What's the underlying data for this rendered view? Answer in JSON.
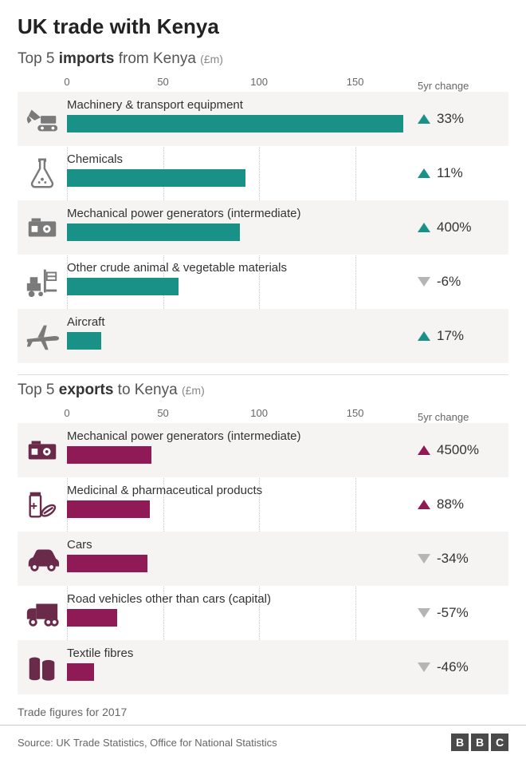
{
  "title": "UK trade with Kenya",
  "axis": {
    "min": 0,
    "max": 180,
    "ticks": [
      0,
      50,
      100,
      150
    ]
  },
  "change_header": "5yr change",
  "colors": {
    "imports_bar": "#1a9187",
    "imports_up": "#1a9187",
    "exports_bar": "#8f1a55",
    "exports_up": "#8f1a55",
    "down": "#b5b5b5",
    "stripe": "#f5f4f2",
    "grid": "#c9c9c9",
    "icon_import": "#7a7a7a",
    "icon_export": "#6a2a4a"
  },
  "sections": [
    {
      "key": "imports",
      "heading_pre": "Top 5 ",
      "heading_bold": "imports",
      "heading_post": " from Kenya",
      "unit": "(£m)",
      "bar_color": "#1a9187",
      "up_color": "#1a9187",
      "icon_color": "#7a7a7a",
      "items": [
        {
          "label": "Machinery & transport equipment",
          "value": 175,
          "change": "33%",
          "dir": "up",
          "icon": "excavator"
        },
        {
          "label": "Chemicals",
          "value": 93,
          "change": "11%",
          "dir": "up",
          "icon": "flask"
        },
        {
          "label": "Mechanical power generators (intermediate)",
          "value": 90,
          "change": "400%",
          "dir": "up",
          "icon": "generator"
        },
        {
          "label": "Other crude animal & vegetable materials",
          "value": 58,
          "change": "-6%",
          "dir": "down",
          "icon": "forklift"
        },
        {
          "label": "Aircraft",
          "value": 18,
          "change": "17%",
          "dir": "up",
          "icon": "aircraft"
        }
      ]
    },
    {
      "key": "exports",
      "heading_pre": "Top 5 ",
      "heading_bold": "exports",
      "heading_post": " to Kenya",
      "unit": "(£m)",
      "bar_color": "#8f1a55",
      "up_color": "#8f1a55",
      "icon_color": "#6a2a4a",
      "items": [
        {
          "label": "Mechanical power generators (intermediate)",
          "value": 44,
          "change": "4500%",
          "dir": "up",
          "icon": "generator"
        },
        {
          "label": "Medicinal & pharmaceutical products",
          "value": 43,
          "change": "88%",
          "dir": "up",
          "icon": "medicine"
        },
        {
          "label": "Cars",
          "value": 42,
          "change": "-34%",
          "dir": "down",
          "icon": "car"
        },
        {
          "label": "Road vehicles other than cars (capital)",
          "value": 26,
          "change": "-57%",
          "dir": "down",
          "icon": "truck"
        },
        {
          "label": "Textile fibres",
          "value": 14,
          "change": "-46%",
          "dir": "down",
          "icon": "rolls"
        }
      ]
    }
  ],
  "footnote": "Trade figures for 2017",
  "source_label": "Source: UK Trade Statistics, Office for National Statistics",
  "logo": [
    "B",
    "B",
    "C"
  ]
}
